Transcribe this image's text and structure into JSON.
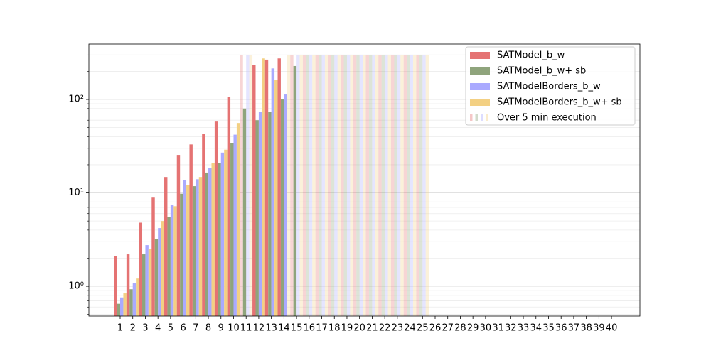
{
  "chart_data": {
    "type": "bar",
    "categories": [
      "1",
      "2",
      "3",
      "4",
      "5",
      "6",
      "7",
      "8",
      "9",
      "10",
      "11",
      "12",
      "13",
      "14",
      "15",
      "16",
      "17",
      "18",
      "19",
      "20",
      "21",
      "22",
      "23",
      "24",
      "25",
      "26",
      "27",
      "28",
      "29",
      "30",
      "31",
      "32",
      "33",
      "34",
      "35",
      "36",
      "37",
      "38",
      "39",
      "40"
    ],
    "series": [
      {
        "name": "SATModel_b_w",
        "color": "#e57373",
        "values": [
          2.1,
          2.2,
          4.8,
          8.9,
          14.8,
          25.5,
          33,
          43,
          58,
          106,
          300,
          232,
          267,
          275,
          300,
          300,
          300,
          300,
          300,
          300,
          300,
          300,
          300,
          300,
          300,
          null,
          null,
          null,
          null,
          null,
          null,
          null,
          null,
          null,
          null,
          null,
          null,
          null,
          null,
          null
        ]
      },
      {
        "name": "SATModel_b_w+ sb",
        "color": "#8fa47c",
        "values": [
          0.65,
          0.93,
          2.2,
          3.2,
          5.5,
          9.8,
          11.8,
          16.5,
          21,
          34,
          80,
          60,
          74,
          100,
          228,
          300,
          300,
          300,
          300,
          300,
          300,
          300,
          300,
          300,
          300,
          null,
          null,
          null,
          null,
          null,
          null,
          null,
          null,
          null,
          null,
          null,
          null,
          null,
          null,
          null
        ]
      },
      {
        "name": "SATModelBorders_b_w",
        "color": "#aaaaff",
        "values": [
          0.76,
          1.09,
          2.76,
          4.2,
          7.5,
          13.8,
          14,
          18.6,
          27,
          42,
          300,
          74,
          215,
          113,
          300,
          300,
          300,
          300,
          300,
          300,
          300,
          300,
          300,
          300,
          300,
          null,
          null,
          null,
          null,
          null,
          null,
          null,
          null,
          null,
          null,
          null,
          null,
          null,
          null,
          null
        ]
      },
      {
        "name": "SATModelBorders_b_w+ sb",
        "color": "#f3d083",
        "values": [
          0.84,
          1.21,
          2.53,
          5.0,
          7.2,
          12.2,
          14.8,
          21,
          29,
          56,
          300,
          275,
          163,
          300,
          300,
          300,
          300,
          300,
          300,
          300,
          300,
          300,
          300,
          300,
          300,
          null,
          null,
          null,
          null,
          null,
          null,
          null,
          null,
          null,
          null,
          null,
          null,
          null,
          null,
          null
        ]
      }
    ],
    "limit": 300,
    "limit_label": "Over 5 min execution",
    "log_y": true,
    "ylim": [
      0.48,
      392
    ],
    "yticks": [
      {
        "value": 1,
        "label": "10⁰"
      },
      {
        "value": 10,
        "label": "10¹"
      },
      {
        "value": 100,
        "label": "10²"
      }
    ],
    "minor_yticks": [
      0.5,
      0.6,
      0.7,
      0.8,
      0.9,
      2,
      3,
      4,
      5,
      6,
      7,
      8,
      9,
      20,
      30,
      40,
      50,
      60,
      70,
      80,
      90,
      200,
      300
    ],
    "grid": true,
    "legend": "upper right"
  }
}
